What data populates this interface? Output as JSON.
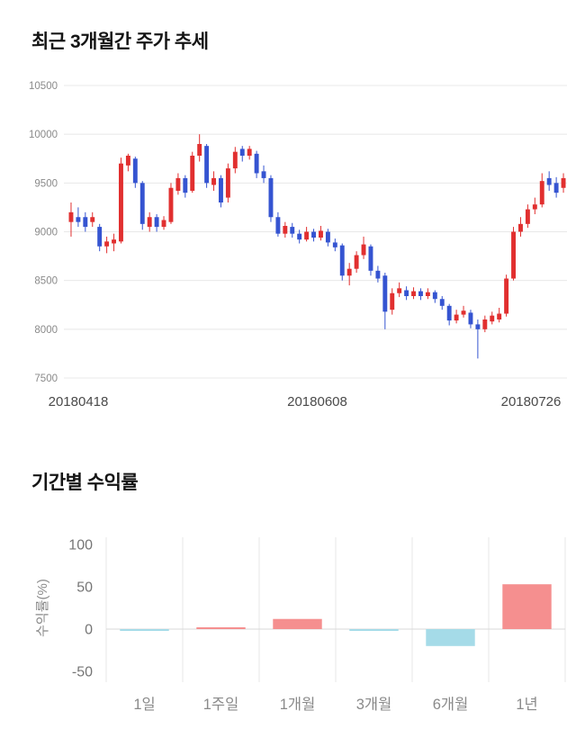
{
  "chart_data": [
    {
      "type": "candlestick",
      "title": "최근 3개월간 주가 추세",
      "ylim": [
        7500,
        10500
      ],
      "yticks": [
        10500,
        10000,
        9500,
        9000,
        8500,
        8000,
        7500
      ],
      "xtick_labels": [
        "20180418",
        "20180608",
        "20180726"
      ],
      "up_color": "#e12f2f",
      "down_color": "#3554d1",
      "grid": true,
      "grid_color": "#e8e8e8",
      "candles_format": [
        "open",
        "high",
        "low",
        "close"
      ],
      "candles": [
        [
          9100,
          9300,
          8950,
          9200
        ],
        [
          9150,
          9250,
          9050,
          9100
        ],
        [
          9150,
          9200,
          9000,
          9050
        ],
        [
          9100,
          9200,
          9050,
          9150
        ],
        [
          9050,
          9080,
          8800,
          8850
        ],
        [
          8850,
          8950,
          8780,
          8900
        ],
        [
          8880,
          8980,
          8800,
          8920
        ],
        [
          8900,
          9760,
          8880,
          9700
        ],
        [
          9680,
          9800,
          9620,
          9780
        ],
        [
          9750,
          9770,
          9450,
          9500
        ],
        [
          9500,
          9520,
          9020,
          9080
        ],
        [
          9050,
          9200,
          9000,
          9150
        ],
        [
          9150,
          9180,
          9000,
          9050
        ],
        [
          9050,
          9160,
          9020,
          9120
        ],
        [
          9100,
          9500,
          9080,
          9450
        ],
        [
          9420,
          9600,
          9380,
          9550
        ],
        [
          9550,
          9580,
          9350,
          9400
        ],
        [
          9420,
          9820,
          9400,
          9780
        ],
        [
          9780,
          10000,
          9720,
          9900
        ],
        [
          9880,
          9900,
          9450,
          9500
        ],
        [
          9480,
          9620,
          9420,
          9550
        ],
        [
          9550,
          9580,
          9250,
          9300
        ],
        [
          9350,
          9700,
          9300,
          9650
        ],
        [
          9650,
          9870,
          9600,
          9820
        ],
        [
          9850,
          9880,
          9720,
          9780
        ],
        [
          9780,
          9880,
          9740,
          9850
        ],
        [
          9800,
          9830,
          9550,
          9600
        ],
        [
          9620,
          9680,
          9500,
          9550
        ],
        [
          9550,
          9580,
          9100,
          9150
        ],
        [
          9150,
          9200,
          8950,
          8980
        ],
        [
          8980,
          9100,
          8940,
          9060
        ],
        [
          9050,
          9090,
          8940,
          8980
        ],
        [
          8980,
          9020,
          8880,
          8920
        ],
        [
          8920,
          9050,
          8900,
          9000
        ],
        [
          9000,
          9030,
          8900,
          8940
        ],
        [
          8940,
          9060,
          8910,
          9010
        ],
        [
          9000,
          9030,
          8850,
          8890
        ],
        [
          8890,
          8930,
          8800,
          8840
        ],
        [
          8860,
          8880,
          8500,
          8550
        ],
        [
          8550,
          8680,
          8450,
          8620
        ],
        [
          8620,
          8800,
          8580,
          8760
        ],
        [
          8760,
          8950,
          8720,
          8870
        ],
        [
          8850,
          8870,
          8550,
          8600
        ],
        [
          8600,
          8650,
          8480,
          8520
        ],
        [
          8550,
          8580,
          8000,
          8180
        ],
        [
          8200,
          8420,
          8150,
          8370
        ],
        [
          8370,
          8480,
          8330,
          8420
        ],
        [
          8400,
          8440,
          8300,
          8340
        ],
        [
          8340,
          8430,
          8310,
          8390
        ],
        [
          8390,
          8420,
          8300,
          8340
        ],
        [
          8340,
          8420,
          8310,
          8380
        ],
        [
          8380,
          8400,
          8270,
          8310
        ],
        [
          8310,
          8340,
          8200,
          8240
        ],
        [
          8240,
          8260,
          8040,
          8090
        ],
        [
          8090,
          8200,
          8060,
          8150
        ],
        [
          8150,
          8240,
          8120,
          8190
        ],
        [
          8170,
          8200,
          8010,
          8050
        ],
        [
          8050,
          8100,
          7700,
          8000
        ],
        [
          8000,
          8140,
          7970,
          8100
        ],
        [
          8080,
          8180,
          8050,
          8140
        ],
        [
          8100,
          8220,
          8070,
          8160
        ],
        [
          8160,
          8560,
          8130,
          8520
        ],
        [
          8520,
          9050,
          8500,
          9000
        ],
        [
          9000,
          9150,
          8950,
          9080
        ],
        [
          9080,
          9280,
          9040,
          9230
        ],
        [
          9230,
          9350,
          9180,
          9280
        ],
        [
          9280,
          9600,
          9250,
          9520
        ],
        [
          9550,
          9620,
          9420,
          9480
        ],
        [
          9500,
          9560,
          9350,
          9400
        ],
        [
          9450,
          9600,
          9400,
          9550
        ]
      ]
    },
    {
      "type": "bar",
      "title": "기간별 수익률",
      "categories": [
        "1일",
        "1주일",
        "1개월",
        "3개월",
        "6개월",
        "1년"
      ],
      "values": [
        -0.5,
        0.5,
        12,
        -2,
        -20,
        53
      ],
      "ylabel": "수익률(%)",
      "ylim": [
        -50,
        100
      ],
      "yticks": [
        100,
        50,
        0,
        -50
      ],
      "positive_color": "#f58f8f",
      "negative_color": "#a5dbe8",
      "grid": "vertical",
      "grid_color": "#e7e7e7",
      "zero_line_color": "#d9d9d9"
    }
  ]
}
